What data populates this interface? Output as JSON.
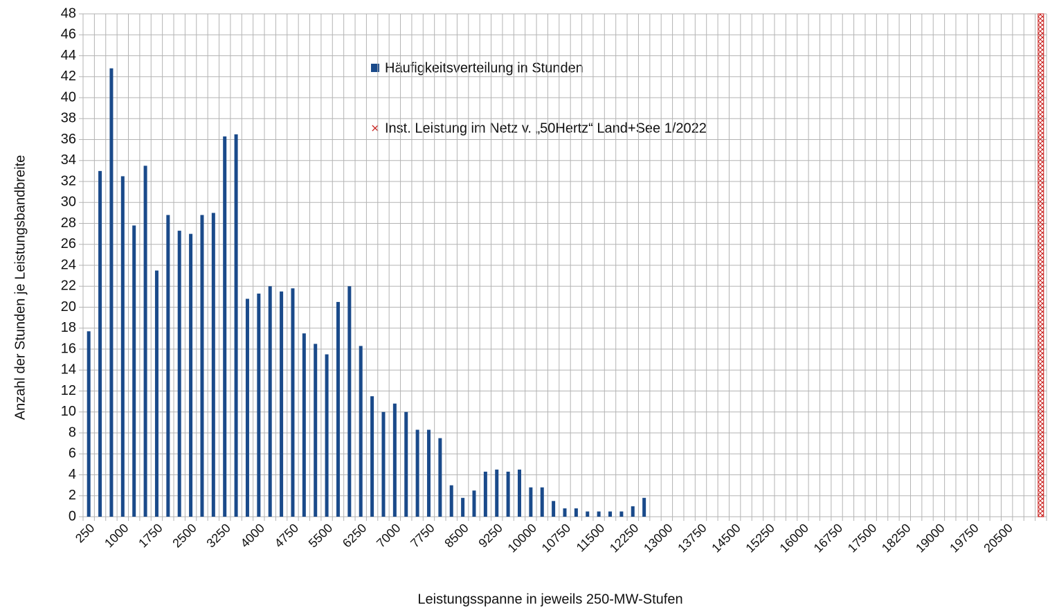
{
  "chart_data": {
    "type": "bar",
    "x_label": "Leistungsspanne in jeweils 250-MW-Stufen",
    "y_label": "Anzahl der Stunden je Leistungsbandbreite",
    "categories": [
      "250",
      null,
      null,
      "1000",
      null,
      null,
      "1750",
      null,
      null,
      "2500",
      null,
      null,
      "3250",
      null,
      null,
      "4000",
      null,
      null,
      "4750",
      null,
      null,
      "5500",
      null,
      null,
      "6250",
      null,
      null,
      "7000",
      null,
      null,
      "7750",
      null,
      null,
      "8500",
      null,
      null,
      "9250",
      null,
      null,
      "10000",
      null,
      null,
      "10750",
      null,
      null,
      "11500",
      null,
      null,
      "12250",
      null,
      null,
      "13000",
      null,
      null,
      "13750",
      null,
      null,
      "14500",
      null,
      null,
      "15250",
      null,
      null,
      "16000",
      null,
      null,
      "16750",
      null,
      null,
      "17500",
      null,
      null,
      "18250",
      null,
      null,
      "19000",
      null,
      null,
      "19750",
      null,
      null,
      "20500",
      null,
      null,
      null
    ],
    "series": [
      {
        "name": "Häufigkeitsverteilung in Stunden",
        "color": "#1a4a8a",
        "values": [
          17.7,
          33,
          42.8,
          32.5,
          27.8,
          33.5,
          23.5,
          28.8,
          27.3,
          27,
          28.8,
          29,
          36.3,
          36.5,
          20.8,
          21.3,
          22,
          21.5,
          21.8,
          17.5,
          16.5,
          15.5,
          20.5,
          22,
          16.3,
          11.5,
          10,
          10.8,
          10,
          8.3,
          8.3,
          7.5,
          3,
          1.8,
          2.5,
          4.3,
          4.5,
          4.3,
          4.5,
          2.8,
          2.8,
          1.5,
          0.8,
          0.8,
          0.5,
          0.5,
          0.5,
          0.5,
          1,
          1.8,
          null,
          null,
          null,
          null,
          null,
          null,
          null,
          null,
          null,
          null,
          null,
          null,
          null,
          null,
          null,
          null,
          null,
          null,
          null,
          null,
          null,
          null,
          null,
          null,
          null,
          null,
          null,
          null,
          null,
          null,
          null,
          null,
          null,
          null,
          null
        ]
      },
      {
        "name": "Inst. Leistung im Netz v. „50Hertz“  Land+See 1/2022",
        "color": "#c9211e",
        "values": [
          null,
          null,
          null,
          null,
          null,
          null,
          null,
          null,
          null,
          null,
          null,
          null,
          null,
          null,
          null,
          null,
          null,
          null,
          null,
          null,
          null,
          null,
          null,
          null,
          null,
          null,
          null,
          null,
          null,
          null,
          null,
          null,
          null,
          null,
          null,
          null,
          null,
          null,
          null,
          null,
          null,
          null,
          null,
          null,
          null,
          null,
          null,
          null,
          null,
          null,
          null,
          null,
          null,
          null,
          null,
          null,
          null,
          null,
          null,
          null,
          null,
          null,
          null,
          null,
          null,
          null,
          null,
          null,
          null,
          null,
          null,
          null,
          null,
          null,
          null,
          null,
          null,
          null,
          null,
          null,
          null,
          null,
          null,
          null,
          48
        ]
      }
    ],
    "ylim": [
      0,
      48
    ],
    "yticks": [
      0,
      2,
      4,
      6,
      8,
      10,
      12,
      14,
      16,
      18,
      20,
      22,
      24,
      26,
      28,
      30,
      32,
      34,
      36,
      38,
      40,
      42,
      44,
      46,
      48
    ],
    "grid": true
  }
}
